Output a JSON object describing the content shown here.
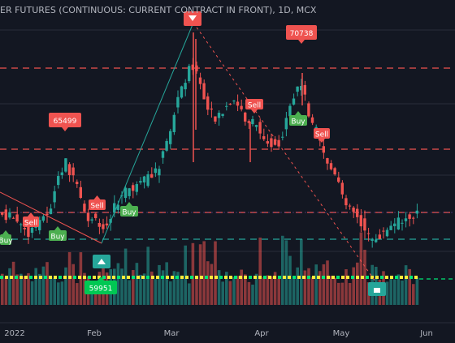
{
  "header": {
    "title": "ER FUTURES (CONTINUOUS: CURRENT CONTRACT IN FRONT), 1D, MCX"
  },
  "colors": {
    "background": "#131722",
    "grid": "#2a2e39",
    "up": "#26a69a",
    "down": "#ef5350",
    "sell": "#ef5350",
    "buy": "#4caf50",
    "level_red": "#ef5350",
    "level_green": "#26a69a",
    "trend": "#26a69a",
    "band_yellow": "#ffeb3b",
    "band_green": "#00e676"
  },
  "chart_data": {
    "type": "candlestick",
    "x_ticks": [
      "2022",
      "Feb",
      "Mar",
      "Apr",
      "May",
      "Jun"
    ],
    "price_labels": [
      "65499",
      "70738",
      "59951"
    ],
    "signals": [
      {
        "label": "Sell",
        "type": "sell",
        "dir": "up"
      },
      {
        "label": "Sell",
        "type": "sell",
        "dir": "down"
      },
      {
        "label": "Sell",
        "type": "sell",
        "dir": "down"
      },
      {
        "label": "Sell",
        "type": "sell",
        "dir": "down"
      },
      {
        "label": "Buy",
        "type": "buy",
        "dir": "up"
      },
      {
        "label": "Buy",
        "type": "buy",
        "dir": "up"
      },
      {
        "label": "Buy",
        "type": "buy",
        "dir": "up"
      },
      {
        "label": "Buy",
        "type": "buy",
        "dir": "up"
      }
    ],
    "ohlc_hint": "closes approx. 61000 in Jan, ~66000 mid-Feb, peak ~71000 early Mar, ~66000 Apr, decline to ~60500 mid-May, ~62000 end of May"
  }
}
